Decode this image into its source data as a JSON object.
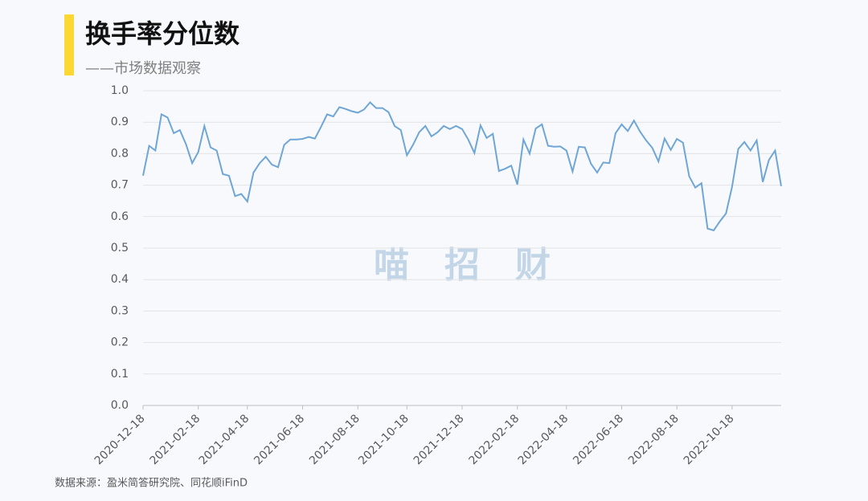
{
  "chart_data": {
    "type": "line",
    "title": "换手率分位数",
    "subtitle": "——市场数据观察",
    "watermark": "喵　招　财",
    "source": "数据来源：盈米简答研究院、同花顺iFinD",
    "categories": [
      "2020-12-18",
      null,
      null,
      null,
      null,
      null,
      null,
      null,
      null,
      "2021-02-18",
      null,
      null,
      null,
      null,
      null,
      null,
      null,
      "2021-04-18",
      null,
      null,
      null,
      null,
      null,
      null,
      null,
      null,
      "2021-06-18",
      null,
      null,
      null,
      null,
      null,
      null,
      null,
      null,
      "2021-08-18",
      null,
      null,
      null,
      null,
      null,
      null,
      null,
      "2021-10-18",
      null,
      null,
      null,
      null,
      null,
      null,
      null,
      null,
      "2021-12-18",
      null,
      null,
      null,
      null,
      null,
      null,
      null,
      null,
      "2022-02-18",
      null,
      null,
      null,
      null,
      null,
      null,
      null,
      "2022-04-18",
      null,
      null,
      null,
      null,
      null,
      null,
      null,
      null,
      "2022-06-18",
      null,
      null,
      null,
      null,
      null,
      null,
      null,
      null,
      "2022-08-18",
      null,
      null,
      null,
      null,
      null,
      null,
      null,
      null,
      "2022-10-18",
      null,
      null,
      null,
      null,
      null,
      null,
      null,
      null
    ],
    "series": [
      {
        "name": "换手率分位数",
        "color": "#6fa6d6",
        "values": [
          0.73,
          0.825,
          0.81,
          0.925,
          0.915,
          0.865,
          0.875,
          0.83,
          0.77,
          0.805,
          0.888,
          0.82,
          0.81,
          0.735,
          0.73,
          0.665,
          0.672,
          0.648,
          0.74,
          0.77,
          0.79,
          0.765,
          0.757,
          0.828,
          0.845,
          0.845,
          0.847,
          0.853,
          0.848,
          0.885,
          0.925,
          0.918,
          0.948,
          0.942,
          0.935,
          0.93,
          0.94,
          0.963,
          0.945,
          0.945,
          0.932,
          0.888,
          0.875,
          0.795,
          0.828,
          0.868,
          0.888,
          0.855,
          0.868,
          0.888,
          0.878,
          0.888,
          0.878,
          0.845,
          0.802,
          0.89,
          0.85,
          0.863,
          0.745,
          0.752,
          0.762,
          0.702,
          0.845,
          0.8,
          0.88,
          0.893,
          0.825,
          0.822,
          0.823,
          0.81,
          0.743,
          0.822,
          0.82,
          0.768,
          0.74,
          0.772,
          0.77,
          0.865,
          0.893,
          0.872,
          0.905,
          0.87,
          0.842,
          0.818,
          0.775,
          0.848,
          0.812,
          0.847,
          0.835,
          0.728,
          0.692,
          0.706,
          0.562,
          0.556,
          0.585,
          0.61,
          0.695,
          0.815,
          0.837,
          0.81,
          0.842,
          0.71,
          0.78,
          0.81,
          0.697
        ]
      }
    ],
    "ylim": [
      0,
      1
    ],
    "yticks": [
      {
        "value": 0,
        "label": "0.0"
      },
      0.1,
      0.2,
      0.3,
      0.4,
      0.5,
      0.6,
      0.7,
      0.8,
      0.9,
      {
        "value": 1,
        "label": "1.0"
      }
    ],
    "grid": true
  }
}
